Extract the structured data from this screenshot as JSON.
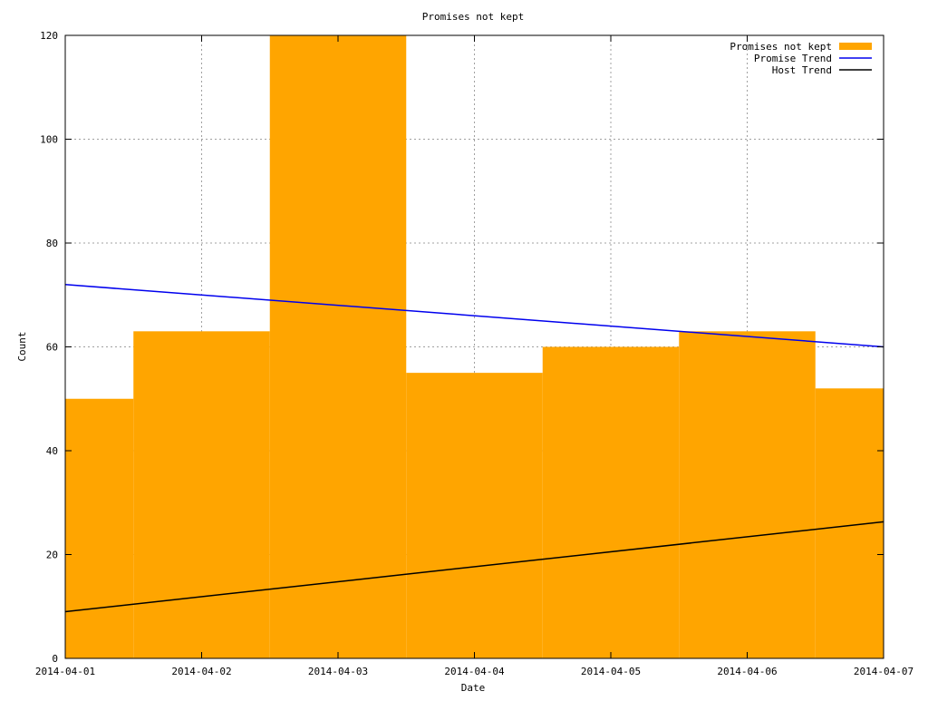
{
  "chart_data": {
    "type": "bar",
    "title": "Promises not kept",
    "xlabel": "Date",
    "ylabel": "Count",
    "xlim": [
      "2014-04-01",
      "2014-04-07"
    ],
    "ylim": [
      0,
      120
    ],
    "x_ticks": [
      "2014-04-01",
      "2014-04-02",
      "2014-04-03",
      "2014-04-04",
      "2014-04-05",
      "2014-04-06",
      "2014-04-07"
    ],
    "y_ticks": [
      0,
      20,
      40,
      60,
      80,
      100,
      120
    ],
    "grid": true,
    "legend_position": "top-right",
    "series": [
      {
        "name": "Promises not kept",
        "type": "bar",
        "color": "#ffa500",
        "x": [
          "2014-04-01",
          "2014-04-02",
          "2014-04-03",
          "2014-04-04",
          "2014-04-05",
          "2014-04-06",
          "2014-04-07"
        ],
        "values": [
          50,
          63,
          120,
          55,
          60,
          63,
          52
        ]
      },
      {
        "name": "Promise Trend",
        "type": "line",
        "color": "#0000ee",
        "x": [
          "2014-04-01",
          "2014-04-07"
        ],
        "values": [
          72,
          60
        ]
      },
      {
        "name": "Host Trend",
        "type": "line",
        "color": "#000000",
        "x": [
          "2014-04-01",
          "2014-04-07"
        ],
        "values": [
          9,
          26.3
        ]
      }
    ]
  }
}
